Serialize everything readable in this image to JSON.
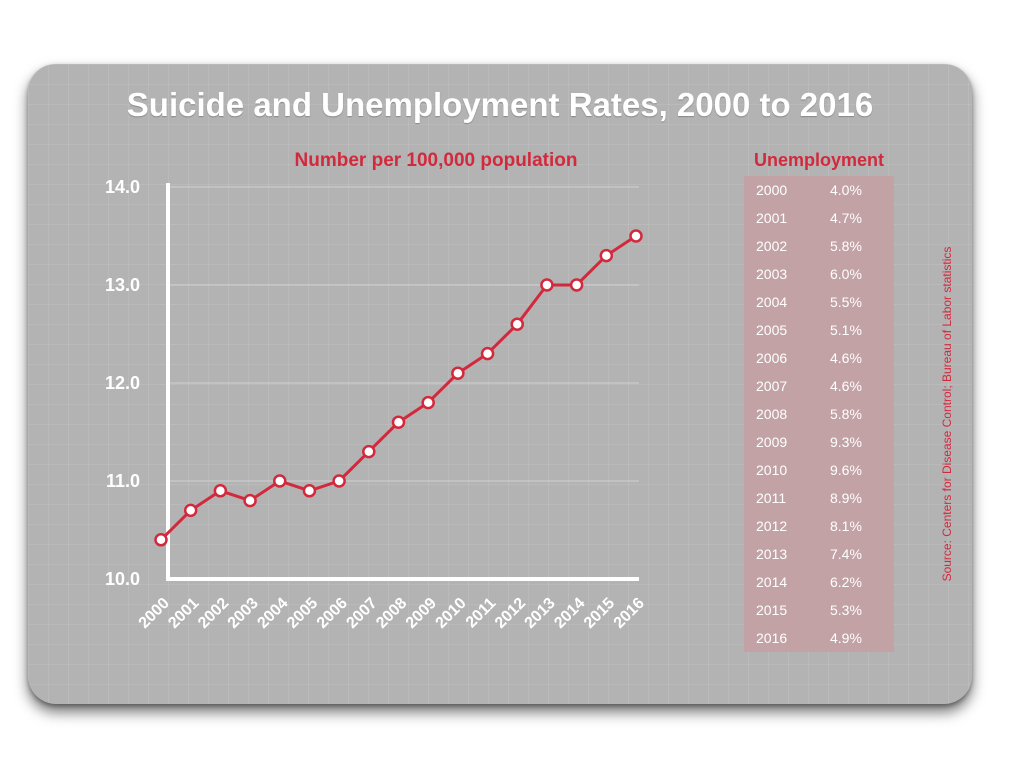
{
  "title": "Suicide and Unemployment Rates, 2000 to 2016",
  "chart_data": {
    "type": "line",
    "title": "Suicide and Unemployment Rates, 2000 to 2016",
    "subtitle": "Number per 100,000 population",
    "x": [
      "2000",
      "2001",
      "2002",
      "2003",
      "2004",
      "2005",
      "2006",
      "2007",
      "2008",
      "2009",
      "2010",
      "2011",
      "2012",
      "2013",
      "2014",
      "2015",
      "2016"
    ],
    "series": [
      {
        "values": [
          10.4,
          10.7,
          10.9,
          10.8,
          11.0,
          10.9,
          11.0,
          11.3,
          11.6,
          11.8,
          12.1,
          12.3,
          12.6,
          13.0,
          13.0,
          13.3,
          13.5
        ]
      }
    ],
    "y_ticks": [
      "10.0",
      "11.0",
      "12.0",
      "13.0",
      "14.0"
    ],
    "ylim": [
      10,
      14
    ],
    "grid": true,
    "line_color": "#d2293d",
    "marker_fill": "#ffffff"
  },
  "unemployment": {
    "title": "Unemployment",
    "rows": [
      {
        "year": "2000",
        "value": "4.0%"
      },
      {
        "year": "2001",
        "value": "4.7%"
      },
      {
        "year": "2002",
        "value": "5.8%"
      },
      {
        "year": "2003",
        "value": "6.0%"
      },
      {
        "year": "2004",
        "value": "5.5%"
      },
      {
        "year": "2005",
        "value": "5.1%"
      },
      {
        "year": "2006",
        "value": "4.6%"
      },
      {
        "year": "2007",
        "value": "4.6%"
      },
      {
        "year": "2008",
        "value": "5.8%"
      },
      {
        "year": "2009",
        "value": "9.3%"
      },
      {
        "year": "2010",
        "value": "9.6%"
      },
      {
        "year": "2011",
        "value": "8.9%"
      },
      {
        "year": "2012",
        "value": "8.1%"
      },
      {
        "year": "2013",
        "value": "7.4%"
      },
      {
        "year": "2014",
        "value": "6.2%"
      },
      {
        "year": "2015",
        "value": "5.3%"
      },
      {
        "year": "2016",
        "value": "4.9%"
      }
    ]
  },
  "source": "Source: Centers for Disease Control; Bureau of Labor statistics",
  "colors": {
    "accent": "#d2293d",
    "card": "#b3b3b3",
    "table": "#c2a2a5"
  }
}
